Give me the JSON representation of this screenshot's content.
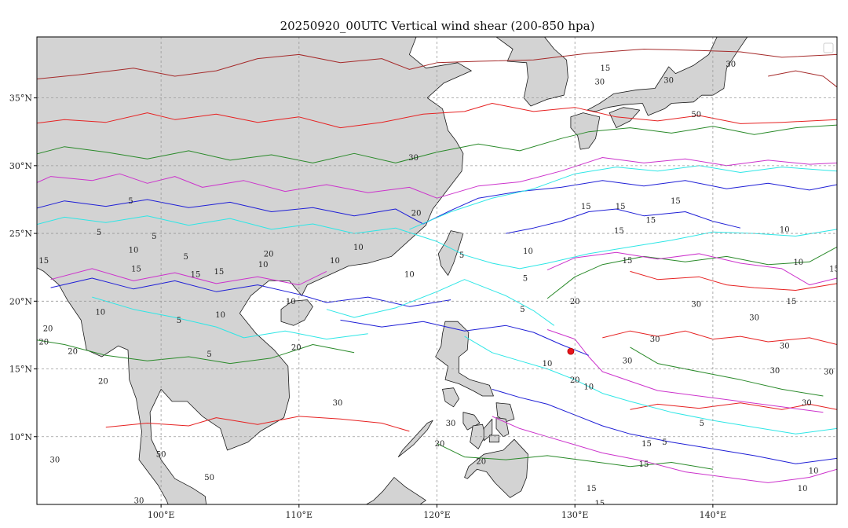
{
  "title": "20250920_00UTC Vertical wind shear (200-850 hpa)",
  "map": {
    "lon_range": [
      91,
      149
    ],
    "lat_range": [
      5,
      39.5
    ],
    "x_ticks": [
      {
        "value": 100,
        "label": "100°E"
      },
      {
        "value": 110,
        "label": "110°E"
      },
      {
        "value": 120,
        "label": "120°E"
      },
      {
        "value": 130,
        "label": "130°E"
      },
      {
        "value": 140,
        "label": "140°E"
      }
    ],
    "y_ticks": [
      {
        "value": 10,
        "label": "10°N"
      },
      {
        "value": 15,
        "label": "15°N"
      },
      {
        "value": 20,
        "label": "20°N"
      },
      {
        "value": 25,
        "label": "25°N"
      },
      {
        "value": 30,
        "label": "30°N"
      },
      {
        "value": 35,
        "label": "35°N"
      }
    ],
    "land_color": "#d3d3d3",
    "grid": true,
    "marker": {
      "lon": 129.7,
      "lat": 16.3,
      "color": "#e8141c"
    }
  },
  "contour_levels": [
    {
      "value": 5,
      "color": "#2ee6e6"
    },
    {
      "value": 10,
      "color": "#1f1fd6"
    },
    {
      "value": 15,
      "color": "#cc33cc"
    },
    {
      "value": 20,
      "color": "#2a8a2a"
    },
    {
      "value": 30,
      "color": "#e62222"
    },
    {
      "value": 50,
      "color": "#a52a2a"
    }
  ],
  "contour_labels": [
    {
      "text": "5",
      "lon": 99.5,
      "lat": 24.8
    },
    {
      "text": "5",
      "lon": 101.8,
      "lat": 23.3
    },
    {
      "text": "5",
      "lon": 101.3,
      "lat": 18.6
    },
    {
      "text": "5",
      "lon": 97.8,
      "lat": 27.4
    },
    {
      "text": "5",
      "lon": 95.5,
      "lat": 25.1
    },
    {
      "text": "5",
      "lon": 103.5,
      "lat": 16.1
    },
    {
      "text": "5",
      "lon": 121.8,
      "lat": 23.4
    },
    {
      "text": "5",
      "lon": 126.4,
      "lat": 21.7
    },
    {
      "text": "5",
      "lon": 126.2,
      "lat": 19.4
    },
    {
      "text": "5",
      "lon": 139.2,
      "lat": 11.0
    },
    {
      "text": "5",
      "lon": 136.5,
      "lat": 9.6
    },
    {
      "text": "10",
      "lon": 98.0,
      "lat": 23.8
    },
    {
      "text": "10",
      "lon": 95.6,
      "lat": 19.2
    },
    {
      "text": "10",
      "lon": 104.3,
      "lat": 19.0
    },
    {
      "text": "10",
      "lon": 107.4,
      "lat": 22.7
    },
    {
      "text": "10",
      "lon": 114.3,
      "lat": 24.0
    },
    {
      "text": "10",
      "lon": 112.6,
      "lat": 23.0
    },
    {
      "text": "10",
      "lon": 109.4,
      "lat": 20.0
    },
    {
      "text": "10",
      "lon": 118.0,
      "lat": 22.0
    },
    {
      "text": "10",
      "lon": 126.6,
      "lat": 23.7
    },
    {
      "text": "10",
      "lon": 128.0,
      "lat": 15.4
    },
    {
      "text": "10",
      "lon": 131.0,
      "lat": 13.7
    },
    {
      "text": "10",
      "lon": 145.2,
      "lat": 25.3
    },
    {
      "text": "10",
      "lon": 146.2,
      "lat": 22.9
    },
    {
      "text": "10",
      "lon": 147.3,
      "lat": 7.5
    },
    {
      "text": "10",
      "lon": 146.5,
      "lat": 6.2
    },
    {
      "text": "15",
      "lon": 98.2,
      "lat": 22.4
    },
    {
      "text": "15",
      "lon": 102.5,
      "lat": 22.0
    },
    {
      "text": "15",
      "lon": 104.2,
      "lat": 22.2
    },
    {
      "text": "15",
      "lon": 132.2,
      "lat": 37.2
    },
    {
      "text": "15",
      "lon": 130.8,
      "lat": 27.0
    },
    {
      "text": "15",
      "lon": 133.3,
      "lat": 27.0
    },
    {
      "text": "15",
      "lon": 135.5,
      "lat": 26.0
    },
    {
      "text": "15",
      "lon": 133.2,
      "lat": 25.2
    },
    {
      "text": "15",
      "lon": 137.3,
      "lat": 27.4
    },
    {
      "text": "15",
      "lon": 133.8,
      "lat": 23.0
    },
    {
      "text": "15",
      "lon": 148.8,
      "lat": 22.4
    },
    {
      "text": "15",
      "lon": 145.7,
      "lat": 20.0
    },
    {
      "text": "15",
      "lon": 135.2,
      "lat": 9.5
    },
    {
      "text": "15",
      "lon": 135.0,
      "lat": 8.0
    },
    {
      "text": "15",
      "lon": 131.2,
      "lat": 6.2
    },
    {
      "text": "15",
      "lon": 131.8,
      "lat": 5.1
    },
    {
      "text": "15",
      "lon": 91.5,
      "lat": 23.0
    },
    {
      "text": "20",
      "lon": 107.8,
      "lat": 23.5
    },
    {
      "text": "20",
      "lon": 118.5,
      "lat": 26.5
    },
    {
      "text": "20",
      "lon": 130.0,
      "lat": 20.0
    },
    {
      "text": "20",
      "lon": 109.8,
      "lat": 16.6
    },
    {
      "text": "20",
      "lon": 93.6,
      "lat": 16.3
    },
    {
      "text": "20",
      "lon": 91.5,
      "lat": 17.0
    },
    {
      "text": "20",
      "lon": 91.8,
      "lat": 18.0
    },
    {
      "text": "20",
      "lon": 95.8,
      "lat": 14.1
    },
    {
      "text": "20",
      "lon": 120.2,
      "lat": 9.5
    },
    {
      "text": "20",
      "lon": 123.2,
      "lat": 8.2
    },
    {
      "text": "20",
      "lon": 130.0,
      "lat": 14.2
    },
    {
      "text": "30",
      "lon": 118.3,
      "lat": 30.6
    },
    {
      "text": "30",
      "lon": 138.8,
      "lat": 19.8
    },
    {
      "text": "30",
      "lon": 143.0,
      "lat": 18.8
    },
    {
      "text": "30",
      "lon": 145.2,
      "lat": 16.7
    },
    {
      "text": "30",
      "lon": 135.8,
      "lat": 17.2
    },
    {
      "text": "30",
      "lon": 133.8,
      "lat": 15.6
    },
    {
      "text": "30",
      "lon": 144.5,
      "lat": 14.9
    },
    {
      "text": "30",
      "lon": 148.4,
      "lat": 14.8
    },
    {
      "text": "30",
      "lon": 146.8,
      "lat": 12.5
    },
    {
      "text": "30",
      "lon": 112.8,
      "lat": 12.5
    },
    {
      "text": "30",
      "lon": 121.0,
      "lat": 11.0
    },
    {
      "text": "30",
      "lon": 92.3,
      "lat": 8.3
    },
    {
      "text": "30",
      "lon": 98.4,
      "lat": 5.3
    },
    {
      "text": "30",
      "lon": 136.8,
      "lat": 36.3
    },
    {
      "text": "30",
      "lon": 131.8,
      "lat": 36.2
    },
    {
      "text": "30",
      "lon": 141.3,
      "lat": 37.5
    },
    {
      "text": "50",
      "lon": 100.0,
      "lat": 8.7
    },
    {
      "text": "50",
      "lon": 103.5,
      "lat": 7.0
    },
    {
      "text": "50",
      "lon": 138.8,
      "lat": 33.8
    }
  ]
}
